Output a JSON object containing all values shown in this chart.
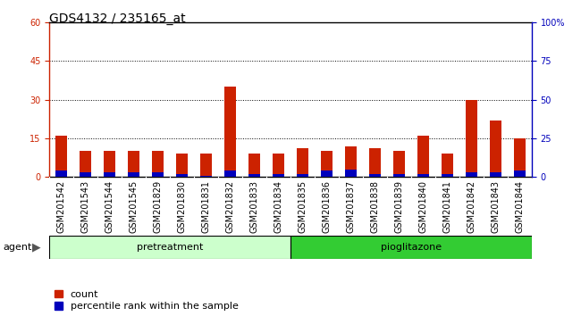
{
  "title": "GDS4132 / 235165_at",
  "categories": [
    "GSM201542",
    "GSM201543",
    "GSM201544",
    "GSM201545",
    "GSM201829",
    "GSM201830",
    "GSM201831",
    "GSM201832",
    "GSM201833",
    "GSM201834",
    "GSM201835",
    "GSM201836",
    "GSM201837",
    "GSM201838",
    "GSM201839",
    "GSM201840",
    "GSM201841",
    "GSM201842",
    "GSM201843",
    "GSM201844"
  ],
  "count_values": [
    16,
    10,
    10,
    10,
    10,
    9,
    9,
    35,
    9,
    9,
    11,
    10,
    12,
    11,
    10,
    16,
    9,
    30,
    22,
    15
  ],
  "percentile_values": [
    4,
    3,
    3,
    3,
    3,
    2,
    1,
    4,
    2,
    2,
    2,
    4,
    5,
    2,
    2,
    2,
    2,
    3,
    3,
    4
  ],
  "groups": [
    {
      "label": "pretreatment",
      "start": 0,
      "end": 10,
      "color": "#CCFFCC"
    },
    {
      "label": "pioglitazone",
      "start": 10,
      "end": 20,
      "color": "#33CC33"
    }
  ],
  "agent_label": "agent",
  "left_ylim": [
    0,
    60
  ],
  "right_ylim": [
    0,
    100
  ],
  "left_yticks": [
    0,
    15,
    30,
    45,
    60
  ],
  "right_yticks": [
    0,
    25,
    50,
    75,
    100
  ],
  "right_yticklabels": [
    "0",
    "25",
    "50",
    "75",
    "100%"
  ],
  "bar_color_count": "#CC2200",
  "bar_color_percentile": "#0000BB",
  "plot_bg_color": "#FFFFFF",
  "tick_bg_color": "#C8C8C8",
  "bar_width": 0.5,
  "legend_count": "count",
  "legend_percentile": "percentile rank within the sample",
  "grid_color": "black",
  "title_fontsize": 10,
  "tick_fontsize": 7,
  "group_fontsize": 8,
  "legend_fontsize": 8
}
